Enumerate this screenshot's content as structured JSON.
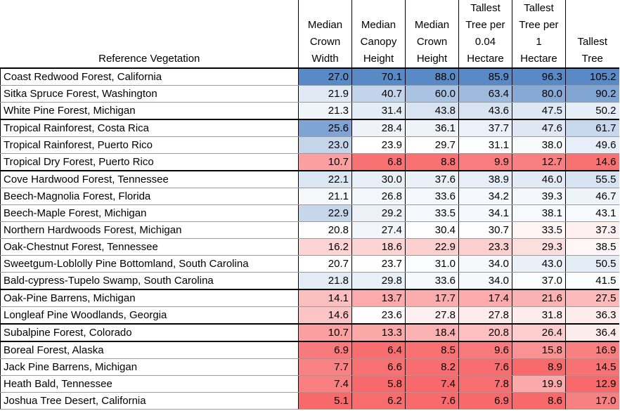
{
  "table": {
    "headers": [
      [
        "Reference Vegetation"
      ],
      [
        "Median",
        "Crown",
        "Width"
      ],
      [
        "Median",
        "Canopy",
        "Height"
      ],
      [
        "Median",
        "Crown",
        "Height"
      ],
      [
        "Tallest",
        "Tree per",
        "0.04",
        "Hectare"
      ],
      [
        "Tallest",
        "Tree per",
        "1",
        "Hectare"
      ],
      [
        "Tallest",
        "Tree"
      ]
    ],
    "rows": [
      {
        "name": "Coast Redwood Forest, California",
        "values": [
          "27.0",
          "70.1",
          "88.0",
          "85.9",
          "96.3",
          "105.2"
        ]
      },
      {
        "name": "Sitka Spruce Forest, Washington",
        "values": [
          "21.9",
          "40.7",
          "60.0",
          "63.4",
          "80.0",
          "90.2"
        ]
      },
      {
        "name": "White Pine Forest, Michigan",
        "values": [
          "21.3",
          "31.4",
          "43.8",
          "43.6",
          "47.5",
          "50.2"
        ]
      },
      {
        "name": "Tropical Rainforest, Costa Rica",
        "values": [
          "25.6",
          "28.4",
          "36.1",
          "37.7",
          "47.6",
          "61.7"
        ]
      },
      {
        "name": "Tropical Rainforest, Puerto Rico",
        "values": [
          "23.0",
          "23.9",
          "29.7",
          "31.1",
          "38.0",
          "49.6"
        ]
      },
      {
        "name": "Tropical Dry Forest, Puerto Rico",
        "values": [
          "10.7",
          "6.8",
          "8.8",
          "9.9",
          "12.7",
          "14.6"
        ]
      },
      {
        "name": "Cove Hardwood Forest, Tennessee",
        "values": [
          "22.1",
          "30.0",
          "37.6",
          "38.9",
          "46.0",
          "55.5"
        ]
      },
      {
        "name": "Beech-Magnolia Forest, Florida",
        "values": [
          "21.1",
          "26.8",
          "33.6",
          "34.2",
          "39.3",
          "46.7"
        ]
      },
      {
        "name": "Beech-Maple Forest, Michigan",
        "values": [
          "22.9",
          "29.2",
          "33.5",
          "34.1",
          "38.1",
          "43.1"
        ]
      },
      {
        "name": "Northern Hardwoods Forest, Michigan",
        "values": [
          "20.8",
          "27.4",
          "30.4",
          "30.7",
          "33.5",
          "37.3"
        ]
      },
      {
        "name": "Oak-Chestnut Forest, Tennessee",
        "values": [
          "16.2",
          "18.6",
          "22.9",
          "23.3",
          "29.3",
          "38.5"
        ]
      },
      {
        "name": "Sweetgum-Loblolly Pine Bottomland, South Carolina",
        "values": [
          "20.7",
          "23.7",
          "31.0",
          "34.0",
          "43.0",
          "50.5"
        ]
      },
      {
        "name": "Bald-cypress-Tupelo Swamp, South Carolina",
        "values": [
          "21.8",
          "29.8",
          "33.6",
          "34.0",
          "37.0",
          "41.5"
        ]
      },
      {
        "name": "Oak-Pine Barrens, Michigan",
        "values": [
          "14.1",
          "13.7",
          "17.7",
          "17.4",
          "21.6",
          "27.5"
        ]
      },
      {
        "name": "Longleaf Pine Woodlands, Georgia",
        "values": [
          "14.6",
          "23.6",
          "27.8",
          "27.8",
          "31.8",
          "36.3"
        ]
      },
      {
        "name": "Subalpine Forest, Colorado",
        "values": [
          "10.7",
          "13.3",
          "18.4",
          "20.8",
          "26.4",
          "36.4"
        ]
      },
      {
        "name": "Boreal Forest, Alaska",
        "values": [
          "6.9",
          "6.4",
          "8.5",
          "9.6",
          "15.8",
          "16.9"
        ]
      },
      {
        "name": "Jack Pine Barrens, Michigan",
        "values": [
          "7.7",
          "6.6",
          "8.2",
          "7.6",
          "8.9",
          "14.5"
        ]
      },
      {
        "name": "Heath Bald, Tennessee",
        "values": [
          "7.4",
          "5.8",
          "7.4",
          "7.8",
          "19.9",
          "12.9"
        ]
      },
      {
        "name": "Joshua Tree Desert, California",
        "values": [
          "5.1",
          "6.2",
          "7.6",
          "6.9",
          "8.6",
          "17.0"
        ]
      }
    ],
    "group_end_rows": [
      2,
      5,
      12,
      14,
      15
    ],
    "color_scale": {
      "low": "#f8696b",
      "mid": "#ffffff",
      "high": "#5a8ac6"
    }
  }
}
